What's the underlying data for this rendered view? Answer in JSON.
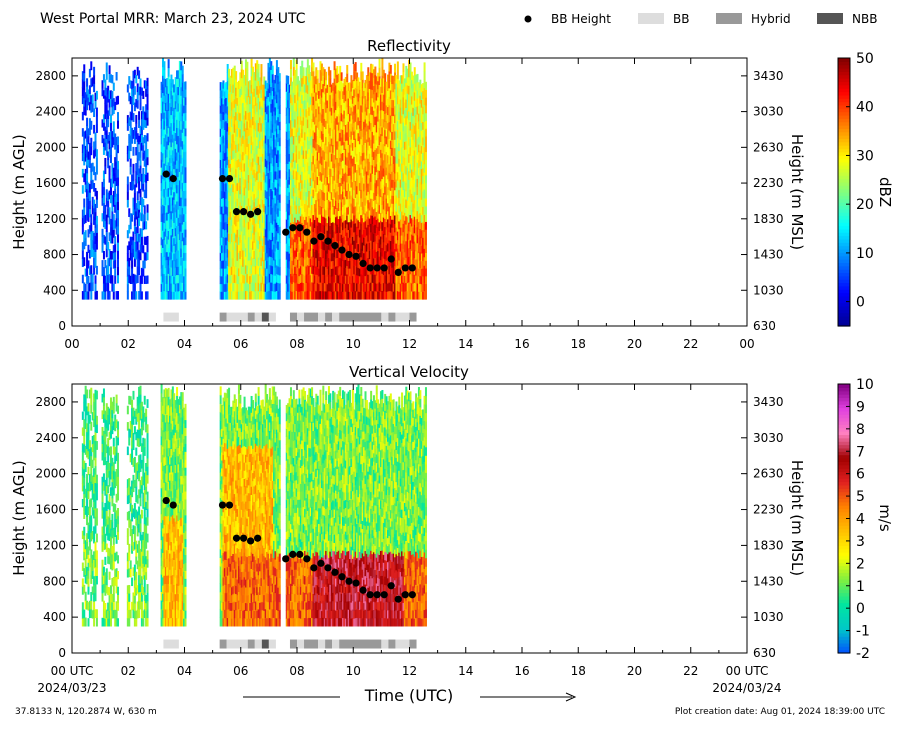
{
  "header": {
    "title": "West Portal MRR:  March 23, 2024 UTC",
    "legend": [
      {
        "label": "BB Height",
        "kind": "dot",
        "color": "#000000"
      },
      {
        "label": "BB",
        "kind": "box",
        "color": "#dddddd"
      },
      {
        "label": "Hybrid",
        "kind": "box",
        "color": "#999999"
      },
      {
        "label": "NBB",
        "kind": "box",
        "color": "#555555"
      }
    ]
  },
  "footer": {
    "location": "37.8133 N, 120.2874 W, 630 m",
    "creation_date": "Plot creation date: Aug 01, 2024 18:39:00 UTC"
  },
  "chart_data": [
    {
      "type": "heatmap",
      "title": "Reflectivity",
      "ylabel": "Height (m AGL)",
      "ylabel_right": "Height (m MSL)",
      "xlabel": "",
      "xlim": [
        0,
        24
      ],
      "ylim": [
        0,
        3000
      ],
      "x_ticks": [
        "00",
        "02",
        "04",
        "06",
        "08",
        "10",
        "12",
        "14",
        "16",
        "18",
        "20",
        "22",
        "00"
      ],
      "y_ticks": [
        0,
        400,
        800,
        1200,
        1600,
        2000,
        2400,
        2800
      ],
      "y_ticks_right": [
        "630",
        "1030",
        "1430",
        "1830",
        "2230",
        "2630",
        "3030",
        "3430"
      ],
      "colorbar": {
        "label": "dBZ",
        "range": [
          -5,
          50
        ],
        "ticks": [
          0,
          10,
          20,
          30,
          40,
          50
        ],
        "colors": [
          "#00008f",
          "#0000ff",
          "#0080ff",
          "#00ffff",
          "#80ff80",
          "#ffff00",
          "#ff8000",
          "#ff0000",
          "#800000"
        ]
      },
      "grid": false
    },
    {
      "type": "heatmap",
      "title": "Vertical Velocity",
      "ylabel": "Height (m AGL)",
      "ylabel_right": "Height (m MSL)",
      "xlabel": "Time (UTC)",
      "xlim": [
        0,
        24
      ],
      "ylim": [
        0,
        3000
      ],
      "x_ticks": [
        "00 UTC",
        "02",
        "04",
        "06",
        "08",
        "10",
        "12",
        "14",
        "16",
        "18",
        "20",
        "22",
        "00 UTC"
      ],
      "x_date_left": "2024/03/23",
      "x_date_right": "2024/03/24",
      "y_ticks": [
        0,
        400,
        800,
        1200,
        1600,
        2000,
        2400,
        2800
      ],
      "y_ticks_right": [
        "630",
        "1030",
        "1430",
        "1830",
        "2230",
        "2630",
        "3030",
        "3430"
      ],
      "colorbar": {
        "label": "m/s",
        "range": [
          -2,
          10
        ],
        "ticks": [
          -2,
          -1,
          0,
          1,
          2,
          3,
          4,
          5,
          6,
          7,
          8,
          9,
          10
        ],
        "colors": [
          "#0050ff",
          "#00c8c8",
          "#00e6a0",
          "#80f040",
          "#ffff00",
          "#ffc000",
          "#ff8000",
          "#e02020",
          "#a00000",
          "#ff80c0",
          "#e040e0",
          "#800080"
        ]
      },
      "grid": false
    }
  ],
  "bb_height": {
    "times": [
      3.35,
      3.6,
      5.35,
      5.6,
      5.85,
      6.1,
      6.35,
      6.6,
      7.6,
      7.85,
      8.1,
      8.35,
      8.6,
      8.85,
      9.1,
      9.35,
      9.6,
      9.85,
      10.1,
      10.35,
      10.6,
      10.85,
      11.1,
      11.35,
      11.6,
      11.85,
      12.1
    ],
    "heights": [
      1700,
      1650,
      1650,
      1650,
      1280,
      1280,
      1250,
      1280,
      1050,
      1100,
      1100,
      1050,
      950,
      1000,
      950,
      900,
      850,
      800,
      780,
      700,
      650,
      650,
      650,
      750,
      600,
      650,
      650
    ]
  },
  "bb_type_segments": [
    {
      "start": 3.25,
      "end": 3.8,
      "type": "BB"
    },
    {
      "start": 5.25,
      "end": 5.5,
      "type": "Hybrid"
    },
    {
      "start": 5.5,
      "end": 6.25,
      "type": "BB"
    },
    {
      "start": 6.25,
      "end": 6.5,
      "type": "Hybrid"
    },
    {
      "start": 6.5,
      "end": 6.75,
      "type": "BB"
    },
    {
      "start": 6.75,
      "end": 7.0,
      "type": "NBB"
    },
    {
      "start": 7.0,
      "end": 7.25,
      "type": "BB"
    },
    {
      "start": 7.75,
      "end": 8.0,
      "type": "Hybrid"
    },
    {
      "start": 8.0,
      "end": 8.25,
      "type": "BB"
    },
    {
      "start": 8.25,
      "end": 8.75,
      "type": "Hybrid"
    },
    {
      "start": 8.75,
      "end": 9.0,
      "type": "BB"
    },
    {
      "start": 9.0,
      "end": 9.25,
      "type": "Hybrid"
    },
    {
      "start": 9.25,
      "end": 9.5,
      "type": "BB"
    },
    {
      "start": 9.5,
      "end": 11.0,
      "type": "Hybrid"
    },
    {
      "start": 11.0,
      "end": 11.25,
      "type": "BB"
    },
    {
      "start": 11.25,
      "end": 11.5,
      "type": "Hybrid"
    },
    {
      "start": 11.5,
      "end": 12.0,
      "type": "BB"
    },
    {
      "start": 12.0,
      "end": 12.25,
      "type": "Hybrid"
    }
  ]
}
